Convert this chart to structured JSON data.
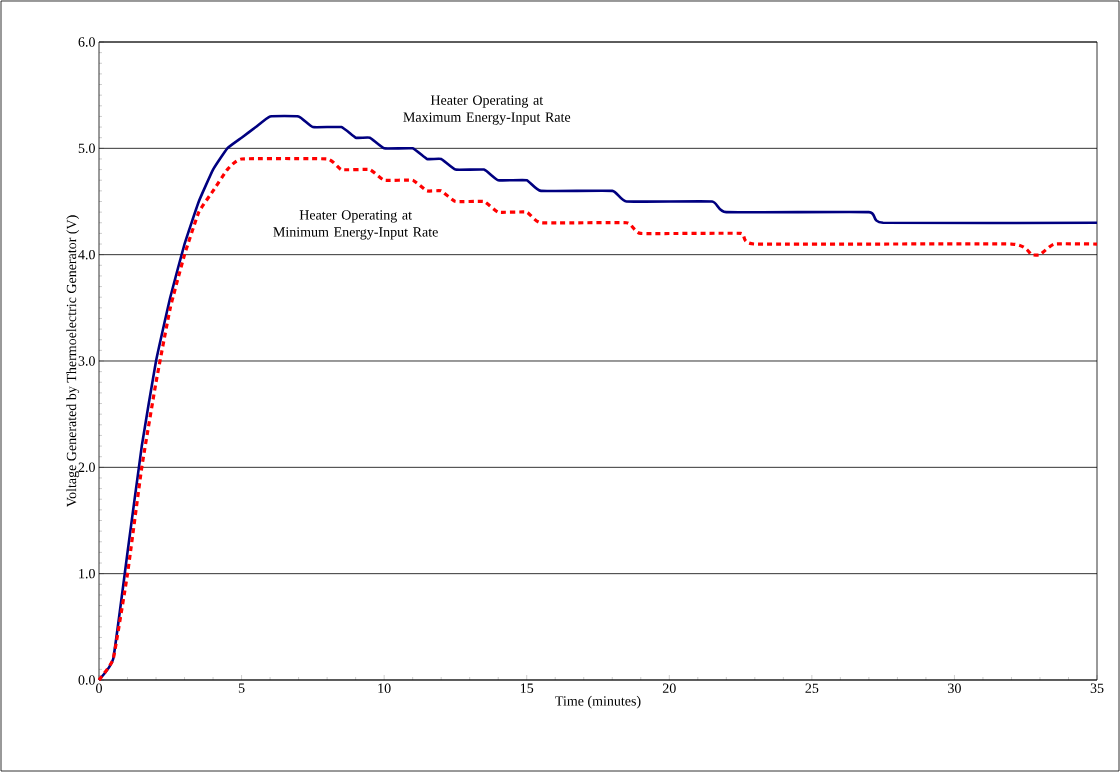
{
  "chart_data": {
    "type": "line",
    "xlabel": "Time (minutes)",
    "ylabel": "Voltage Generated by Thermoelectric Generator  (V)",
    "xlim": [
      0,
      35
    ],
    "ylim": [
      0,
      6
    ],
    "xticks": [
      0,
      5,
      10,
      15,
      20,
      25,
      30,
      35
    ],
    "yticks": [
      {
        "value": 0,
        "label": "0.0"
      },
      {
        "value": 1,
        "label": "1.0"
      },
      {
        "value": 2,
        "label": "2.0"
      },
      {
        "value": 3,
        "label": "3.0"
      },
      {
        "value": 4,
        "label": "4.0"
      },
      {
        "value": 5,
        "label": "5.0"
      },
      {
        "value": 6,
        "label": "6.0"
      }
    ],
    "grid": "y",
    "marker": "none",
    "series": [
      {
        "color": "#000080",
        "line_style": "solid",
        "x": [
          0,
          0.5,
          1,
          1.5,
          2,
          2.5,
          3,
          3.5,
          4,
          4.5,
          5,
          5.5,
          6,
          7,
          7.5,
          8.5,
          9,
          9.5,
          10,
          11,
          11.5,
          12,
          12.5,
          13.5,
          14,
          15,
          15.5,
          18,
          18.5,
          21.5,
          22,
          27,
          27.5,
          35
        ],
        "values": [
          0,
          0.2,
          1.2,
          2.2,
          3.0,
          3.6,
          4.1,
          4.5,
          4.8,
          5.0,
          5.1,
          5.2,
          5.3,
          5.3,
          5.2,
          5.2,
          5.1,
          5.1,
          5.0,
          5.0,
          4.9,
          4.9,
          4.8,
          4.8,
          4.7,
          4.7,
          4.6,
          4.6,
          4.5,
          4.5,
          4.4,
          4.4,
          4.3,
          4.3
        ]
      },
      {
        "color": "#ff0000",
        "line_style": "dotted",
        "x": [
          0,
          0.5,
          1,
          1.5,
          2,
          2.5,
          3,
          3.5,
          4,
          4.5,
          5,
          8,
          8.5,
          9.5,
          10,
          11,
          11.5,
          12,
          12.5,
          13.5,
          14,
          15,
          15.5,
          18.5,
          19,
          22.5,
          23,
          32,
          32.7,
          33,
          33.5,
          35
        ],
        "values": [
          0,
          0.2,
          1.0,
          2.0,
          2.8,
          3.5,
          4.0,
          4.4,
          4.6,
          4.8,
          4.9,
          4.9,
          4.8,
          4.8,
          4.7,
          4.7,
          4.6,
          4.6,
          4.5,
          4.5,
          4.4,
          4.4,
          4.3,
          4.3,
          4.2,
          4.2,
          4.1,
          4.1,
          4.0,
          4.0,
          4.1,
          4.1
        ]
      }
    ],
    "annotations": [
      "Heater Operating at Maximum Energy-Input Rate",
      "Heater Operating at Minimum Energy-Input Rate"
    ]
  }
}
